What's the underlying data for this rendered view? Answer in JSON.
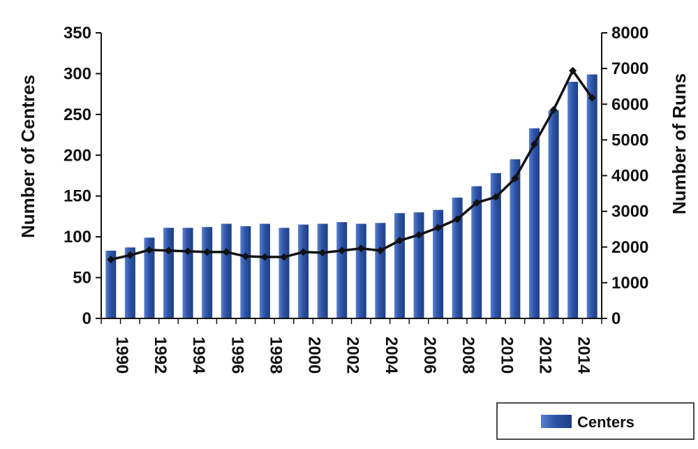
{
  "chart_data": {
    "type": "bar",
    "x": [
      1990,
      1991,
      1992,
      1993,
      1994,
      1995,
      1996,
      1997,
      1998,
      1999,
      2000,
      2001,
      2002,
      2003,
      2004,
      2005,
      2006,
      2007,
      2008,
      2009,
      2010,
      2011,
      2012,
      2013,
      2014,
      2015
    ],
    "x_tick_labels": [
      "1990",
      "1992",
      "1994",
      "1996",
      "1998",
      "2000",
      "2002",
      "2004",
      "2006",
      "2008",
      "2010",
      "2012",
      "2014"
    ],
    "series": [
      {
        "name": "Centers",
        "type": "bar",
        "axis": "left",
        "color": "#2E55A8",
        "values": [
          83,
          87,
          99,
          111,
          111,
          112,
          116,
          113,
          116,
          111,
          115,
          116,
          118,
          116,
          117,
          129,
          130,
          133,
          148,
          162,
          178,
          195,
          233,
          255,
          290,
          299
        ]
      },
      {
        "type": "line",
        "axis": "right",
        "color": "#111111",
        "values": [
          1650,
          1770,
          1920,
          1900,
          1880,
          1860,
          1860,
          1740,
          1720,
          1720,
          1860,
          1840,
          1900,
          1960,
          1900,
          2180,
          2340,
          2540,
          2780,
          3240,
          3400,
          3920,
          4880,
          5840,
          6940,
          6180
        ]
      }
    ],
    "y_left": {
      "label": "Number of Centres",
      "ylim": [
        0,
        350
      ],
      "ticks": [
        "0",
        "50",
        "100",
        "150",
        "200",
        "250",
        "300",
        "350"
      ]
    },
    "y_right": {
      "label": "Number of Runs",
      "ylim": [
        0,
        8000
      ],
      "ticks": [
        "0",
        "1000",
        "2000",
        "3000",
        "4000",
        "5000",
        "6000",
        "7000",
        "8000"
      ]
    },
    "legend": {
      "position": "bottom-right",
      "entries": [
        "Centers"
      ]
    },
    "grid": false
  }
}
